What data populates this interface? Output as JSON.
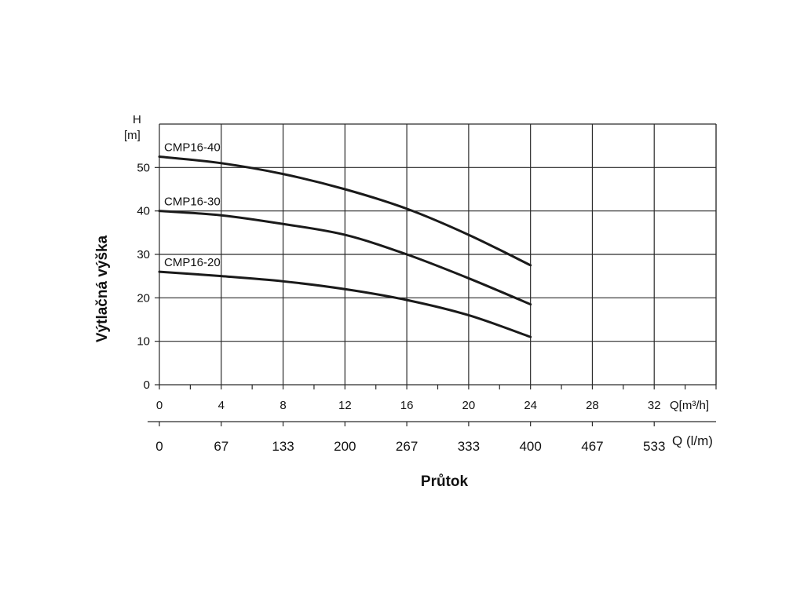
{
  "chart_data": {
    "type": "line",
    "ylabel": "Výtlačná výška",
    "xlabel": "Průtok",
    "y_unit_label": {
      "letter": "H",
      "unit": "[m]"
    },
    "x_unit_label": "Q[m³/h]",
    "x2_unit_label": "Q (l/m)",
    "xlim": [
      0,
      36
    ],
    "ylim": [
      0,
      60
    ],
    "x_ticks": [
      "0",
      "4",
      "8",
      "12",
      "16",
      "20",
      "24",
      "28",
      "32"
    ],
    "x2_ticks": [
      "0",
      "67",
      "133",
      "200",
      "267",
      "333",
      "400",
      "467",
      "533"
    ],
    "y_ticks": [
      "0",
      "10",
      "20",
      "30",
      "40",
      "50"
    ],
    "grid": true,
    "series": [
      {
        "name": "CMP16-40",
        "x": [
          0,
          4,
          8,
          12,
          16,
          20,
          24
        ],
        "y": [
          52.5,
          51,
          48.5,
          45,
          40.5,
          34.5,
          27.5
        ]
      },
      {
        "name": "CMP16-30",
        "x": [
          0,
          4,
          8,
          12,
          16,
          20,
          24
        ],
        "y": [
          40,
          39,
          37,
          34.5,
          30,
          24.5,
          18.5
        ]
      },
      {
        "name": "CMP16-20",
        "x": [
          0,
          4,
          8,
          12,
          16,
          20,
          24
        ],
        "y": [
          26,
          25,
          23.8,
          22,
          19.5,
          16,
          11
        ]
      }
    ]
  }
}
